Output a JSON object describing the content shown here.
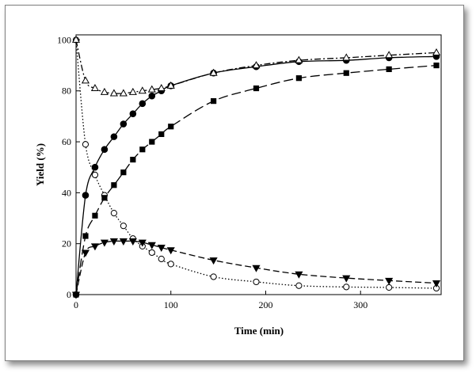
{
  "chart_data": {
    "type": "scatter",
    "title": "",
    "xlabel": "Time (min)",
    "ylabel": "Yield (%)",
    "xlim": [
      0,
      385
    ],
    "ylim": [
      0,
      102
    ],
    "x_ticks": [
      0,
      100,
      200,
      300
    ],
    "y_ticks": [
      0,
      20,
      40,
      60,
      80,
      100
    ],
    "grid": false,
    "legend": "none",
    "series": [
      {
        "marker": "open-circle",
        "line": "dotted",
        "color": "#000000",
        "x": [
          0,
          10,
          20,
          30,
          40,
          50,
          60,
          70,
          80,
          90,
          100,
          145,
          190,
          235,
          285,
          330,
          380
        ],
        "y": [
          100,
          59,
          47,
          39,
          32,
          27,
          22,
          19,
          16.5,
          14,
          12,
          7,
          5,
          3.5,
          3,
          2.8,
          2.5
        ]
      },
      {
        "marker": "filled-circle",
        "line": "solid",
        "color": "#000000",
        "x": [
          0,
          10,
          20,
          30,
          40,
          50,
          60,
          70,
          80,
          90,
          100,
          145,
          190,
          235,
          285,
          330,
          380
        ],
        "y": [
          0,
          39,
          50,
          57,
          62,
          67,
          71,
          75,
          78,
          80,
          82,
          87,
          89.5,
          91.5,
          92,
          93,
          93.5
        ]
      },
      {
        "marker": "filled-square",
        "line": "long-dash",
        "color": "#000000",
        "x": [
          0,
          10,
          20,
          30,
          40,
          50,
          60,
          70,
          80,
          90,
          100,
          145,
          190,
          235,
          285,
          330,
          380
        ],
        "y": [
          0,
          23,
          31,
          38,
          43,
          48,
          53,
          57,
          60,
          63,
          66,
          76,
          81,
          85,
          87,
          88.5,
          90
        ]
      },
      {
        "marker": "open-triangle-up",
        "line": "dash-dot",
        "color": "#000000",
        "x": [
          0,
          10,
          20,
          30,
          40,
          50,
          60,
          70,
          80,
          90,
          100,
          145,
          190,
          235,
          285,
          330,
          380
        ],
        "y": [
          100,
          84,
          81,
          79.5,
          79,
          79,
          79.5,
          80,
          80.5,
          81,
          82,
          87,
          90,
          92,
          93,
          94,
          95
        ]
      },
      {
        "marker": "filled-triangle-down",
        "line": "dash",
        "color": "#000000",
        "x": [
          0,
          10,
          20,
          30,
          40,
          50,
          60,
          70,
          80,
          90,
          100,
          145,
          190,
          235,
          285,
          330,
          380
        ],
        "y": [
          0,
          16.5,
          19,
          20.5,
          21,
          21,
          21,
          20.5,
          19.5,
          18.5,
          17.5,
          13.5,
          10.5,
          8,
          6.5,
          5.5,
          4.5
        ]
      }
    ]
  }
}
